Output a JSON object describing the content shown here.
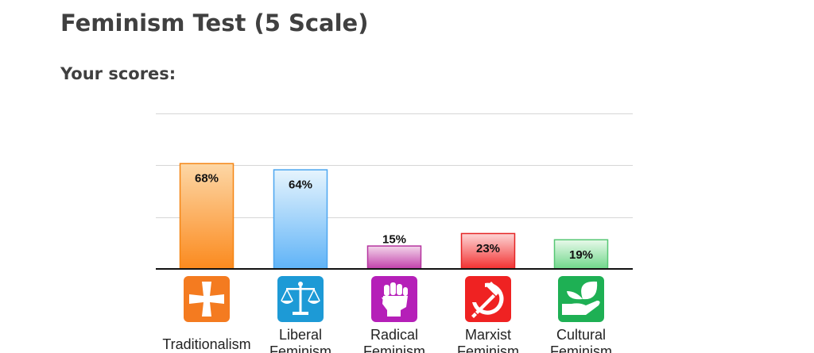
{
  "header": {
    "title": "Feminism Test (5 Scale)",
    "subtitle": "Your scores:"
  },
  "chart_data": {
    "type": "bar",
    "categories": [
      "Traditionalism",
      "Liberal Feminism",
      "Radical Feminism",
      "Marxist Feminism",
      "Cultural Feminism"
    ],
    "category_lines": [
      [
        "Traditionalism"
      ],
      [
        "Liberal",
        "Feminism"
      ],
      [
        "Radical",
        "Feminism"
      ],
      [
        "Marxist",
        "Feminism"
      ],
      [
        "Cultural",
        "Feminism"
      ]
    ],
    "values": [
      68,
      64,
      15,
      23,
      19
    ],
    "value_labels": [
      "68%",
      "64%",
      "15%",
      "23%",
      "19%"
    ],
    "ylim": [
      0,
      100
    ],
    "grid": true,
    "legend": "none",
    "colors": [
      {
        "top": "#fdd7a6",
        "bottom": "#fb8a1e",
        "border": "#f58513",
        "icon": "#f47b20"
      },
      {
        "top": "#e6f4fd",
        "bottom": "#5fb3f7",
        "border": "#4ca6f0",
        "icon": "#1d9ad6"
      },
      {
        "top": "#f3d6ea",
        "bottom": "#c13faa",
        "border": "#b5349f",
        "icon": "#b51fb8"
      },
      {
        "top": "#fdd6d6",
        "bottom": "#f23030",
        "border": "#e52424",
        "icon": "#ef2222"
      },
      {
        "top": "#e8f9ea",
        "bottom": "#6fd78a",
        "border": "#56c774",
        "icon": "#1eb054"
      }
    ],
    "icons": [
      "cross-icon",
      "scales-icon",
      "raised-fist-icon",
      "hammer-sickle-icon",
      "hand-leaf-icon"
    ]
  }
}
